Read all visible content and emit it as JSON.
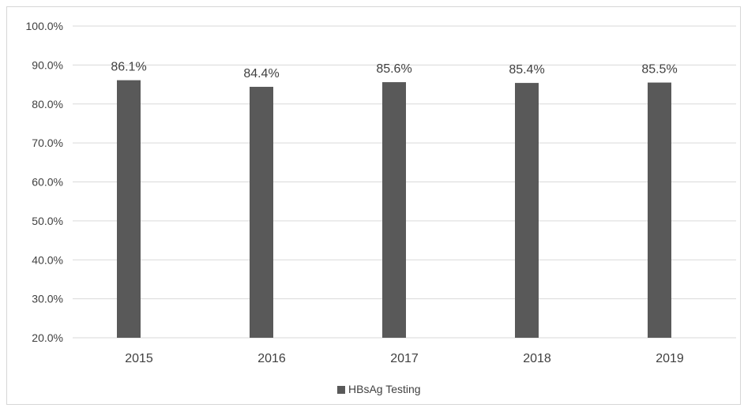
{
  "chart_data": {
    "type": "bar",
    "title": "",
    "xlabel": "",
    "ylabel": "",
    "categories": [
      "2015",
      "2016",
      "2017",
      "2018",
      "2019"
    ],
    "series": [
      {
        "name": "HBsAg Testing",
        "values": [
          86.1,
          84.4,
          85.6,
          85.4,
          85.5
        ],
        "color": "#595959"
      }
    ],
    "data_labels": [
      "86.1%",
      "84.4%",
      "85.6%",
      "85.4%",
      "85.5%"
    ],
    "ylim": [
      20,
      100
    ],
    "yticks": [
      20,
      30,
      40,
      50,
      60,
      70,
      80,
      90,
      100
    ],
    "ytick_labels": [
      "20.0%",
      "30.0%",
      "40.0%",
      "50.0%",
      "60.0%",
      "70.0%",
      "80.0%",
      "90.0%",
      "100.0%"
    ],
    "grid": true,
    "legend_position": "bottom",
    "colors": {
      "bar": "#595959",
      "grid": "#d9d9d9",
      "text": "#404040"
    }
  }
}
